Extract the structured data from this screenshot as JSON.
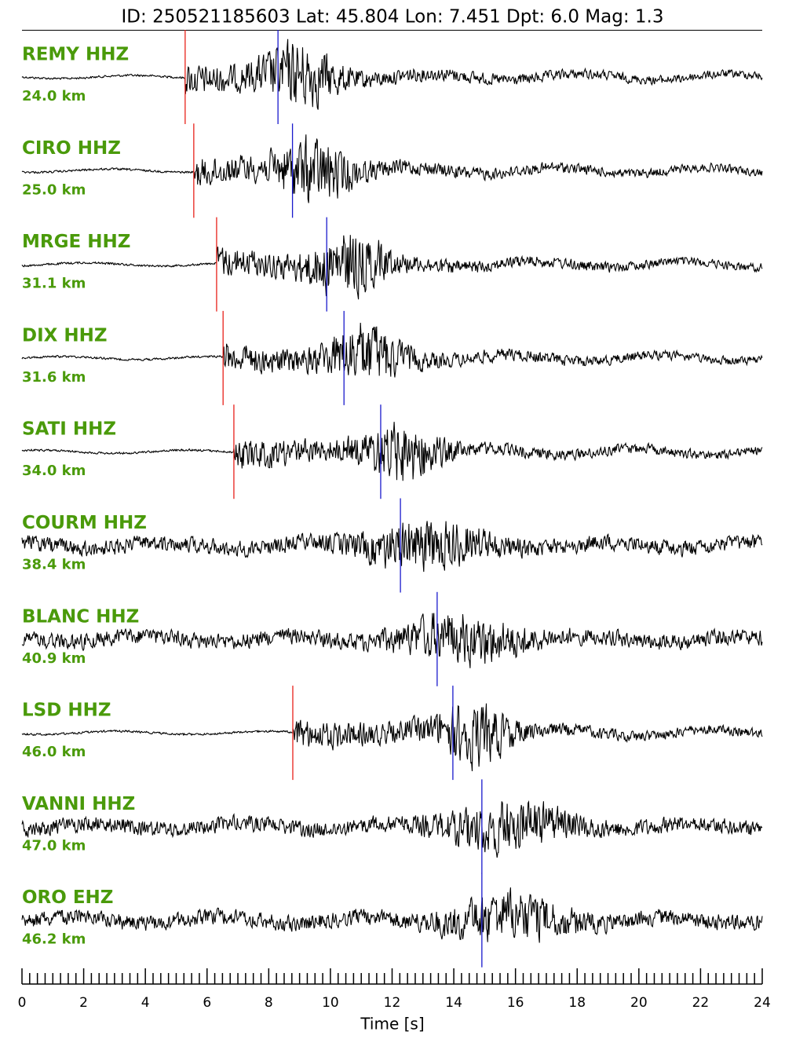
{
  "chart_data": {
    "type": "seismogram",
    "title": "ID: 250521185603 Lat:  45.804 Lon:   7.451 Dpt:     6.0 Mag:   1.3",
    "xlabel": "Time [s]",
    "xlim": [
      0,
      24
    ],
    "xticks": [
      0,
      2,
      4,
      6,
      8,
      10,
      12,
      14,
      16,
      18,
      20,
      22,
      24
    ],
    "xminorticks": [
      0.25,
      0.5,
      0.75,
      1,
      1.25,
      1.5,
      1.75,
      2.25,
      2.5,
      2.75,
      3,
      3.25,
      3.5,
      3.75,
      4.25,
      4.5,
      4.75,
      5,
      5.25,
      5.5,
      5.75,
      6.25,
      6.5,
      6.75,
      7,
      7.25,
      7.5,
      7.75,
      8.25,
      8.5,
      8.75,
      9,
      9.25,
      9.5,
      9.75,
      10.25,
      10.5,
      10.75,
      11,
      11.25,
      11.5,
      11.75,
      12.25,
      12.5,
      12.75,
      13,
      13.25,
      13.5,
      13.75,
      14.25,
      14.5,
      14.75,
      15,
      15.25,
      15.5,
      15.75,
      16.25,
      16.5,
      16.75,
      17,
      17.25,
      17.5,
      17.75,
      18.25,
      18.5,
      18.75,
      19,
      19.25,
      19.5,
      19.75,
      20.25,
      20.5,
      20.75,
      21,
      21.25,
      21.5,
      21.75,
      22.25,
      22.5,
      22.75,
      23,
      23.25,
      23.5,
      23.75
    ],
    "p_color": "#e8201a",
    "s_color": "#1a1acc",
    "traces": [
      {
        "name": "REMY HHZ",
        "distance": "24.0 km",
        "p": 5.29,
        "s": 8.3
      },
      {
        "name": "CIRO HHZ",
        "distance": "25.0 km",
        "p": 5.57,
        "s": 8.77
      },
      {
        "name": "MRGE HHZ",
        "distance": "31.1 km",
        "p": 6.31,
        "s": 9.88
      },
      {
        "name": "DIX HHZ",
        "distance": "31.6 km",
        "p": 6.52,
        "s": 10.44
      },
      {
        "name": "SATI HHZ",
        "distance": "34.0 km",
        "p": 6.87,
        "s": 11.63
      },
      {
        "name": "COURM HHZ",
        "distance": "38.4 km",
        "p": null,
        "s": 12.27
      },
      {
        "name": "BLANC HHZ",
        "distance": "40.9 km",
        "p": null,
        "s": 13.46
      },
      {
        "name": "LSD HHZ",
        "distance": "46.0 km",
        "p": 8.78,
        "s": 13.97
      },
      {
        "name": "VANNI HHZ",
        "distance": "47.0 km",
        "p": null,
        "s": 14.91
      },
      {
        "name": "ORO EHZ",
        "distance": "46.2 km",
        "p": null,
        "s": 14.91
      }
    ]
  }
}
